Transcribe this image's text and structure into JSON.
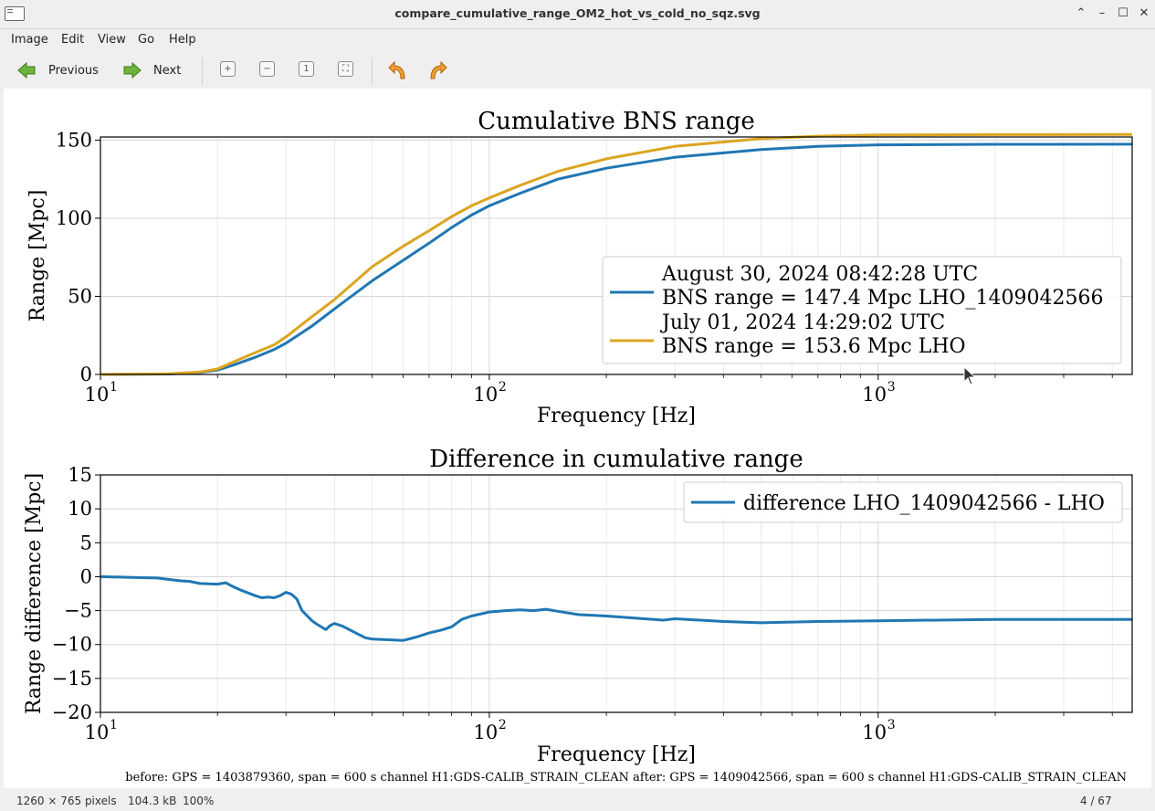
{
  "window": {
    "title": "compare_cumulative_range_OM2_hot_vs_cold_no_sqz.svg"
  },
  "menu": {
    "items": [
      "Image",
      "Edit",
      "View",
      "Go",
      "Help"
    ]
  },
  "toolbar": {
    "previous_label": "Previous",
    "next_label": "Next"
  },
  "status": {
    "dimensions": "1260 × 765 pixels",
    "size": "104.3 kB",
    "zoom": "100%",
    "position": "4 / 67"
  },
  "footer_text": "before: GPS = 1403879360, span = 600 s channel H1:GDS-CALIB_STRAIN_CLEAN after: GPS = 1409042566, span = 600 s channel H1:GDS-CALIB_STRAIN_CLEAN",
  "chart_data": [
    {
      "type": "line",
      "title": "Cumulative BNS range",
      "xlabel": "Frequency [Hz]",
      "ylabel": "Range [Mpc]",
      "xscale": "log",
      "xlim": [
        10,
        4500
      ],
      "ylim": [
        0,
        152
      ],
      "xticks": [
        10,
        100,
        1000
      ],
      "xtick_labels": [
        "10",
        "10",
        "10"
      ],
      "xtick_exps": [
        "1",
        "2",
        "3"
      ],
      "yticks": [
        0,
        50,
        100,
        150
      ],
      "ytick_labels": [
        "0",
        "50",
        "100",
        "150"
      ],
      "grid": true,
      "legend_position": "right",
      "series": [
        {
          "name": "August 30, 2024 08:42:28 UTC",
          "name_line2": "BNS range = 147.4 Mpc LHO_1409042566",
          "color": "#1f77b4",
          "x": [
            10,
            15,
            18,
            20,
            22,
            25,
            28,
            30,
            35,
            40,
            50,
            60,
            70,
            80,
            90,
            100,
            120,
            150,
            200,
            300,
            500,
            700,
            1000,
            2000,
            4500
          ],
          "y": [
            0,
            0.3,
            1.2,
            2.8,
            6,
            11,
            16,
            20,
            31,
            42,
            60,
            73,
            84,
            94,
            102,
            108,
            116,
            125,
            132,
            139,
            144,
            146,
            147,
            147.3,
            147.4
          ]
        },
        {
          "name": "July 01, 2024 14:29:02 UTC",
          "name_line2": "BNS range = 153.6 Mpc LHO",
          "color": "#dba520",
          "x": [
            10,
            15,
            18,
            20,
            22,
            25,
            28,
            30,
            35,
            40,
            50,
            60,
            70,
            80,
            90,
            100,
            120,
            150,
            200,
            300,
            500,
            700,
            1000,
            2000,
            4500
          ],
          "y": [
            0,
            0.4,
            1.5,
            3.5,
            8,
            14,
            19,
            24,
            37,
            48,
            69,
            82,
            92,
            101,
            108,
            113,
            121,
            130,
            138,
            146,
            151,
            152.5,
            153.3,
            153.5,
            153.6
          ]
        }
      ]
    },
    {
      "type": "line",
      "title": "Difference in cumulative range",
      "xlabel": "Frequency [Hz]",
      "ylabel": "Range difference [Mpc]",
      "xscale": "log",
      "xlim": [
        10,
        4500
      ],
      "ylim": [
        -20,
        15
      ],
      "xticks": [
        10,
        100,
        1000
      ],
      "xtick_labels": [
        "10",
        "10",
        "10"
      ],
      "xtick_exps": [
        "1",
        "2",
        "3"
      ],
      "yticks": [
        -20,
        -15,
        -10,
        -5,
        0,
        5,
        10,
        15
      ],
      "ytick_labels": [
        "−20",
        "−15",
        "−10",
        "−5",
        "0",
        "5",
        "10",
        "15"
      ],
      "grid": true,
      "legend_position": "top-right",
      "series": [
        {
          "name": "difference LHO_1409042566 - LHO",
          "color": "#1f77b4",
          "x": [
            10,
            12,
            14,
            16,
            17,
            18,
            20,
            21,
            22,
            23,
            25,
            26,
            27,
            28,
            29,
            30,
            31,
            32,
            33,
            35,
            36,
            38,
            39,
            40,
            42,
            45,
            48,
            50,
            55,
            60,
            65,
            70,
            75,
            80,
            85,
            90,
            100,
            110,
            120,
            130,
            140,
            150,
            170,
            200,
            250,
            280,
            300,
            400,
            500,
            700,
            1000,
            2000,
            4500
          ],
          "y": [
            0,
            -0.1,
            -0.2,
            -0.6,
            -0.7,
            -1.0,
            -1.1,
            -0.9,
            -1.5,
            -2.0,
            -2.8,
            -3.1,
            -3.0,
            -3.1,
            -2.8,
            -2.3,
            -2.6,
            -3.3,
            -5.0,
            -6.5,
            -7.0,
            -7.8,
            -7.2,
            -6.9,
            -7.3,
            -8.2,
            -9.0,
            -9.2,
            -9.3,
            -9.4,
            -8.9,
            -8.3,
            -7.9,
            -7.4,
            -6.3,
            -5.8,
            -5.2,
            -5.0,
            -4.9,
            -5.0,
            -4.8,
            -5.1,
            -5.6,
            -5.8,
            -6.2,
            -6.4,
            -6.2,
            -6.6,
            -6.8,
            -6.6,
            -6.5,
            -6.3,
            -6.3
          ]
        }
      ]
    }
  ]
}
